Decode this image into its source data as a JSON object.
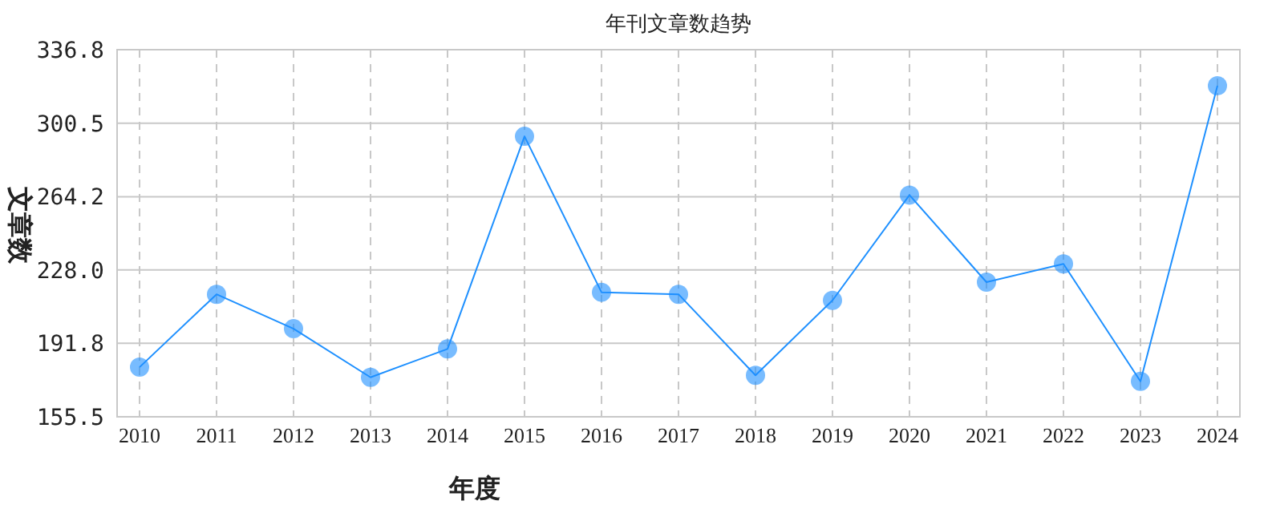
{
  "chart_data": {
    "type": "line",
    "title": "年刊文章数趋势",
    "xlabel": "年度",
    "ylabel": "文章数",
    "categories": [
      "2010",
      "2011",
      "2012",
      "2013",
      "2014",
      "2015",
      "2016",
      "2017",
      "2018",
      "2019",
      "2020",
      "2021",
      "2022",
      "2023",
      "2024"
    ],
    "series": [
      {
        "color": "#1e90ff",
        "values": [
          180,
          216,
          199,
          175,
          189,
          294,
          217,
          216,
          176,
          213,
          265,
          222,
          231,
          173,
          319
        ]
      }
    ],
    "ylim": [
      155.5,
      336.8
    ],
    "yticks": [
      155.5,
      191.8,
      {
        "value": 228.0,
        "label": "228.0"
      },
      264.2,
      300.5,
      336.8
    ],
    "grid": true,
    "marker": "circle",
    "line_style": "solid"
  }
}
